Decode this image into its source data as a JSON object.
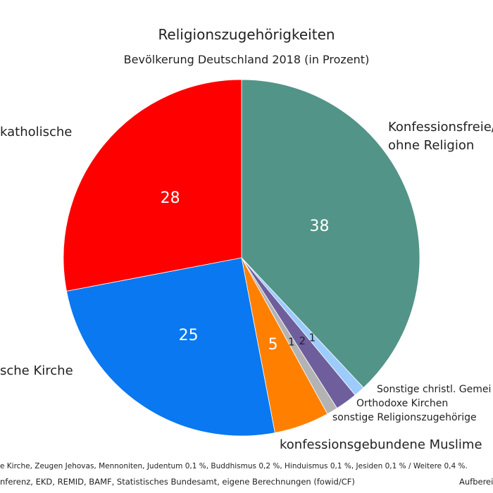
{
  "chart_data": {
    "type": "pie",
    "title": "Religionszugehörigkeiten",
    "subtitle": "Bevölkerung Deutschland 2018 (in Prozent)",
    "start_angle_deg": 0,
    "direction": "clockwise",
    "slices": [
      {
        "label_lines": [
          "Konfessionsfreie/",
          "ohne Religion"
        ],
        "value": 38,
        "value_label": "38",
        "color": "#529488"
      },
      {
        "label_lines": [
          "Sonstige christl. Gemei"
        ],
        "value": 1,
        "value_label": "1",
        "color": "#9ccbfc"
      },
      {
        "label_lines": [
          "Orthodoxe Kirchen"
        ],
        "value": 2,
        "value_label": "2",
        "color": "#6e5f9c"
      },
      {
        "label_lines": [
          "sonstige Religionszugehörige"
        ],
        "value": 1,
        "value_label": "1",
        "color": "#b3b3b3"
      },
      {
        "label_lines": [
          "konfessionsgebundene Muslime"
        ],
        "value": 5,
        "value_label": "5",
        "color": "#ff8000"
      },
      {
        "label_lines": [
          "sche Kirche"
        ],
        "value": 25,
        "value_label": "25",
        "color": "#0a78f0"
      },
      {
        "label_lines": [
          "katholische"
        ],
        "value": 28,
        "value_label": "28",
        "color": "#ff0000"
      }
    ],
    "footnotes": [
      "e Kirche, Zeugen Jehovas, Mennoniten, Judentum 0,1 %, Buddhismus 0,2 %, Hinduismus 0,1 %, Jesiden 0,1 % / Weitere 0,4 %.",
      "nferenz, EKD, REMID, BAMF, Statistisches Bundesamt, eigene Berechnungen (fowid/CF)"
    ],
    "credit": "Aufbereit"
  }
}
